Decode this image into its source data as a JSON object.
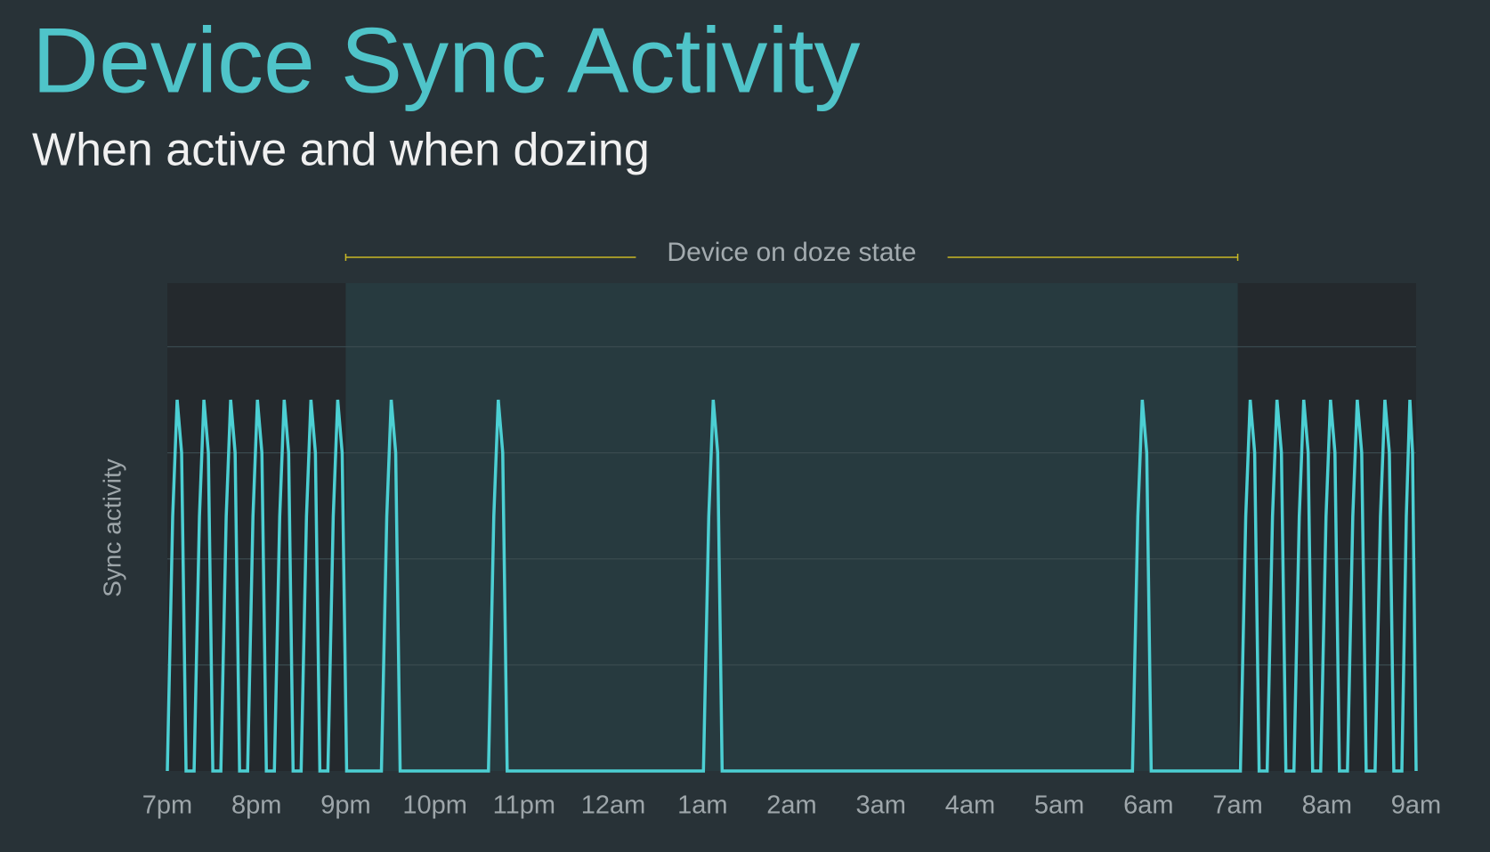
{
  "chart_data": {
    "type": "line",
    "title": "Device Sync Activity",
    "subtitle": "When active and when dozing",
    "y_label": "Sync activity",
    "annotation": {
      "text": "Device on doze state",
      "x_range": [
        2,
        12
      ]
    },
    "color": "#4ccfd3",
    "grid": true,
    "xlim": [
      0,
      14
    ],
    "xticks": [
      {
        "value": 0,
        "label": "7pm"
      },
      {
        "value": 1,
        "label": "8pm"
      },
      {
        "value": 2,
        "label": "9pm"
      },
      {
        "value": 3,
        "label": "10pm"
      },
      {
        "value": 4,
        "label": "11pm"
      },
      {
        "value": 5,
        "label": "12am"
      },
      {
        "value": 6,
        "label": "1am"
      },
      {
        "value": 7,
        "label": "2am"
      },
      {
        "value": 8,
        "label": "3am"
      },
      {
        "value": 9,
        "label": "4am"
      },
      {
        "value": 10,
        "label": "5am"
      },
      {
        "value": 11,
        "label": "6am"
      },
      {
        "value": 12,
        "label": "7am"
      },
      {
        "value": 13,
        "label": "8am"
      },
      {
        "value": 14,
        "label": "9am"
      }
    ],
    "ylim": [
      0,
      4.6
    ],
    "yticks": [
      1,
      2,
      3,
      4
    ],
    "x": [
      0,
      0.06,
      0.11,
      0.16,
      0.21,
      0.3,
      0.36,
      0.41,
      0.46,
      0.51,
      0.6,
      0.66,
      0.71,
      0.76,
      0.81,
      0.9,
      0.96,
      1.01,
      1.06,
      1.11,
      1.2,
      1.26,
      1.31,
      1.36,
      1.41,
      1.5,
      1.56,
      1.61,
      1.66,
      1.71,
      1.8,
      1.86,
      1.91,
      1.96,
      2.01,
      2.4,
      2.46,
      2.51,
      2.56,
      2.61,
      3.6,
      3.66,
      3.71,
      3.76,
      3.81,
      6.01,
      6.07,
      6.12,
      6.17,
      6.22,
      10.82,
      10.88,
      10.93,
      10.98,
      11.03,
      12.03,
      12.09,
      12.14,
      12.19,
      12.24,
      12.33,
      12.39,
      12.44,
      12.49,
      12.54,
      12.63,
      12.69,
      12.74,
      12.79,
      12.84,
      12.93,
      12.99,
      13.04,
      13.09,
      13.14,
      13.23,
      13.29,
      13.34,
      13.39,
      13.44,
      13.54,
      13.6,
      13.65,
      13.7,
      13.75,
      13.84,
      13.89,
      13.93,
      13.96,
      14.0
    ],
    "values": [
      0,
      2.4,
      3.5,
      3,
      0,
      0,
      2.4,
      3.5,
      3,
      0,
      0,
      2.4,
      3.5,
      3,
      0,
      0,
      2.4,
      3.5,
      3,
      0,
      0,
      2.4,
      3.5,
      3,
      0,
      0,
      2.4,
      3.5,
      3,
      0,
      0,
      2.4,
      3.5,
      3,
      0,
      0,
      2.4,
      3.5,
      3,
      0,
      0,
      2.4,
      3.5,
      3,
      0,
      0,
      2.4,
      3.5,
      3,
      0,
      0,
      2.4,
      3.5,
      3,
      0,
      0,
      2.4,
      3.5,
      3,
      0,
      0,
      2.4,
      3.5,
      3,
      0,
      0,
      2.4,
      3.5,
      3,
      0,
      0,
      2.4,
      3.5,
      3,
      0,
      0,
      2.4,
      3.5,
      3,
      0,
      0,
      2.4,
      3.5,
      3,
      0,
      0,
      2.4,
      3.5,
      3,
      0
    ]
  }
}
